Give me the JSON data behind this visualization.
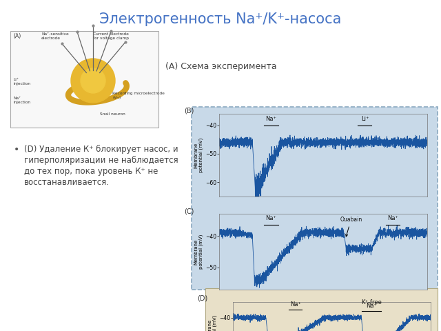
{
  "title": "Электрогенность Na⁺/K⁺-насоса",
  "title_color": "#4472C4",
  "title_fontsize": 15,
  "background_color": "#ffffff",
  "bullet_text_lines": [
    "(D) Удаление К⁺ блокирует насос, и",
    "гиперполяризации не наблюдается",
    "до тех пор, пока уровень К⁺ не",
    "восстанавливается."
  ],
  "schema_label": "(A) Схема эксперимента",
  "panel_B_bg": "#c8d9e8",
  "panel_D_bg": "#e8e0c8",
  "border_color": "#8aa8c0",
  "graph_signal_color": "#1a55a0",
  "schema_bg": "#f8f8f8",
  "schema_border": "#aaaaaa",
  "text_color": "#444444"
}
